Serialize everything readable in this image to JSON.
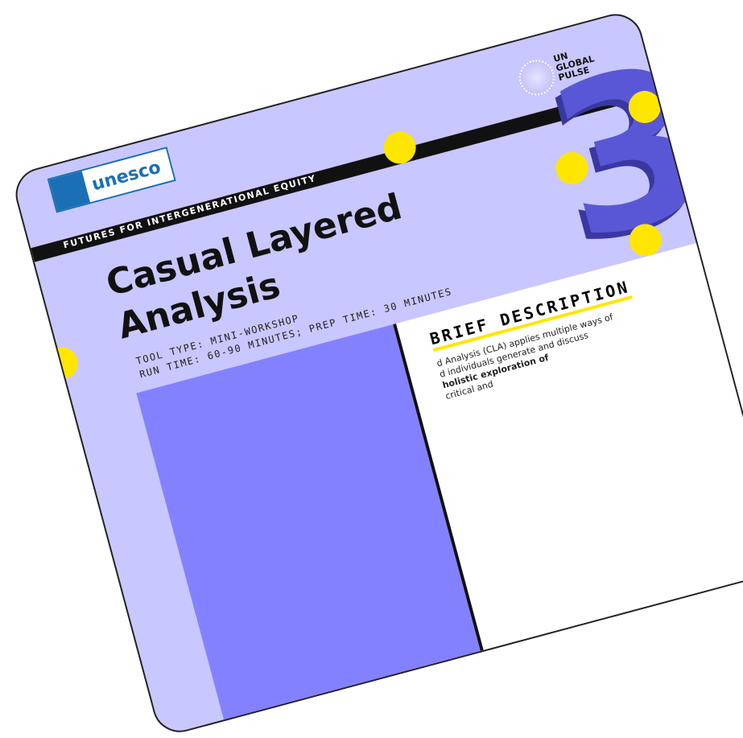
{
  "header": {
    "partner_logo": "unesco",
    "brand": [
      "UN",
      "GLOBAL",
      "PULSE"
    ],
    "series": "FUTURES FOR INTERGENERATIONAL EQUITY",
    "number": "3"
  },
  "title": {
    "line1": "Casual Layered",
    "line2": "Analysis"
  },
  "meta": {
    "tool_type": "TOOL TYPE: MINI-WORKSHOP",
    "times": "RUN TIME: 60-90 MINUTES; PREP TIME: 30 MINUTES"
  },
  "section": {
    "heading": "BRIEF DESCRIPTION",
    "lines": [
      "d Analysis (CLA) applies multiple ways of",
      "d individuals generate and discuss",
      "holistic exploration of",
      "critical and"
    ]
  }
}
